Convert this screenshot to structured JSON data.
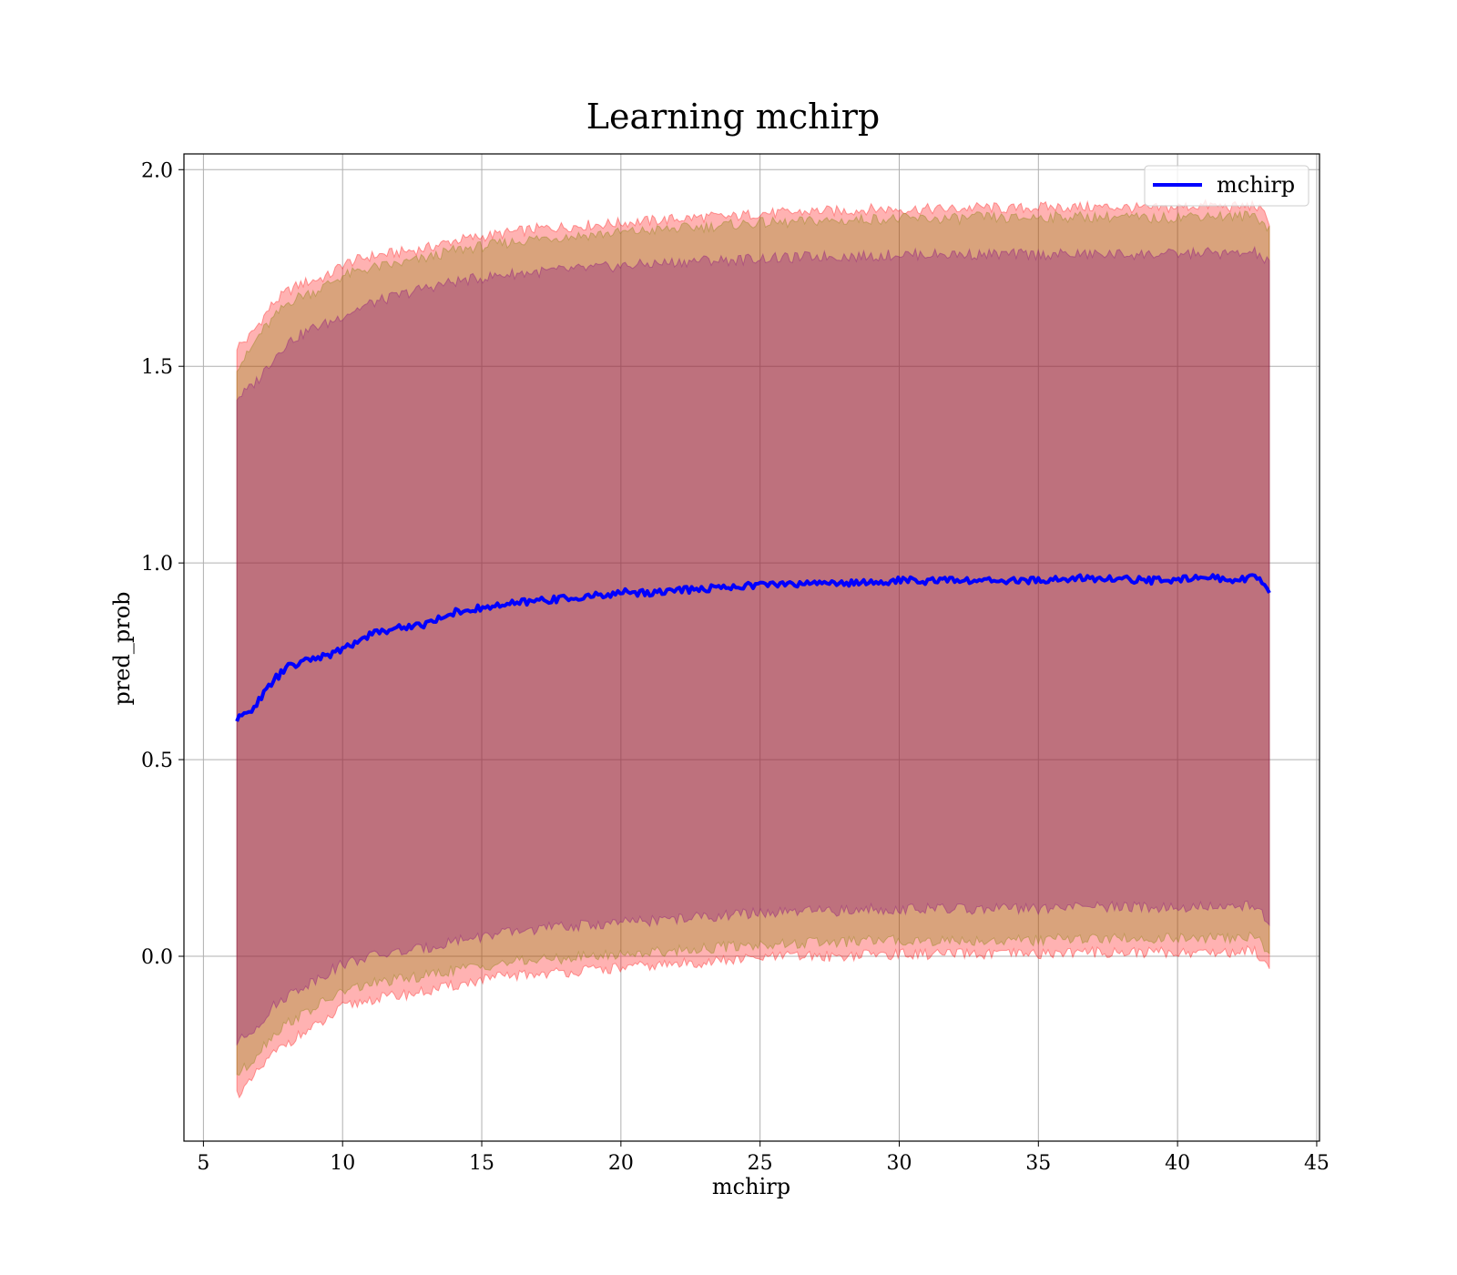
{
  "chart_data": {
    "type": "line",
    "title": "Learning mchirp",
    "xlabel": "mchirp",
    "ylabel": "pred_prob",
    "xlim": [
      4.3,
      45.1
    ],
    "ylim": [
      -0.47,
      2.04
    ],
    "xticks": [
      5,
      10,
      15,
      20,
      25,
      30,
      35,
      40,
      45
    ],
    "xtick_labels": [
      "5",
      "10",
      "15",
      "20",
      "25",
      "30",
      "35",
      "40",
      "45"
    ],
    "yticks": [
      0.0,
      0.5,
      1.0,
      1.5,
      2.0
    ],
    "ytick_labels": [
      "0.0",
      "0.5",
      "1.0",
      "1.5",
      "2.0"
    ],
    "grid": true,
    "legend_position": "top-right",
    "series": [
      {
        "name": "mchirp",
        "color": "#0000ff",
        "x": [
          6.2,
          6.6,
          7.0,
          7.5,
          8.0,
          8.5,
          9.0,
          9.5,
          10.0,
          11.0,
          12.0,
          13.0,
          14.0,
          15.0,
          16.0,
          17.0,
          18.0,
          19.0,
          20.0,
          21.0,
          22.0,
          23.0,
          24.0,
          25.0,
          26.0,
          27.0,
          28.0,
          29.0,
          30.0,
          31.0,
          32.0,
          33.0,
          34.0,
          35.0,
          36.0,
          37.0,
          38.0,
          39.0,
          40.0,
          41.0,
          42.0,
          42.8,
          43.3
        ],
        "y": [
          0.6,
          0.62,
          0.65,
          0.7,
          0.735,
          0.745,
          0.76,
          0.765,
          0.78,
          0.82,
          0.835,
          0.845,
          0.875,
          0.885,
          0.895,
          0.905,
          0.91,
          0.915,
          0.925,
          0.925,
          0.93,
          0.935,
          0.94,
          0.945,
          0.945,
          0.95,
          0.95,
          0.95,
          0.955,
          0.955,
          0.955,
          0.955,
          0.955,
          0.955,
          0.96,
          0.96,
          0.96,
          0.955,
          0.96,
          0.965,
          0.955,
          0.965,
          0.925
        ]
      }
    ],
    "bands": [
      {
        "color": "#ff0000",
        "opacity": 0.3,
        "x": [
          6.2,
          6.6,
          7.0,
          7.5,
          8.0,
          8.5,
          9.0,
          9.5,
          10.0,
          11.0,
          12.0,
          13.0,
          14.0,
          15.0,
          16.0,
          17.0,
          18.0,
          19.0,
          20.0,
          21.0,
          22.0,
          23.0,
          24.0,
          25.0,
          26.0,
          27.0,
          28.0,
          29.0,
          30.0,
          31.0,
          32.0,
          33.0,
          34.0,
          35.0,
          36.0,
          37.0,
          38.0,
          39.0,
          40.0,
          41.0,
          42.0,
          42.8,
          43.3
        ],
        "upper": [
          1.55,
          1.57,
          1.61,
          1.66,
          1.69,
          1.71,
          1.72,
          1.73,
          1.76,
          1.78,
          1.79,
          1.8,
          1.82,
          1.83,
          1.84,
          1.85,
          1.855,
          1.86,
          1.865,
          1.87,
          1.875,
          1.88,
          1.88,
          1.89,
          1.89,
          1.895,
          1.895,
          1.9,
          1.9,
          1.9,
          1.9,
          1.905,
          1.9,
          1.905,
          1.905,
          1.905,
          1.905,
          1.9,
          1.905,
          1.91,
          1.905,
          1.91,
          1.87
        ],
        "lower": [
          -0.35,
          -0.33,
          -0.29,
          -0.25,
          -0.22,
          -0.2,
          -0.18,
          -0.16,
          -0.13,
          -0.11,
          -0.1,
          -0.09,
          -0.075,
          -0.06,
          -0.05,
          -0.045,
          -0.04,
          -0.035,
          -0.03,
          -0.025,
          -0.02,
          -0.015,
          -0.01,
          -0.005,
          0.0,
          0.0,
          0.0,
          0.005,
          0.005,
          0.005,
          0.005,
          0.005,
          0.005,
          0.005,
          0.01,
          0.01,
          0.01,
          0.01,
          0.01,
          0.01,
          0.01,
          0.015,
          -0.03
        ]
      },
      {
        "color": "#808000",
        "opacity": 0.3,
        "x": [
          6.2,
          6.6,
          7.0,
          7.5,
          8.0,
          8.5,
          9.0,
          9.5,
          10.0,
          11.0,
          12.0,
          13.0,
          14.0,
          15.0,
          16.0,
          17.0,
          18.0,
          19.0,
          20.0,
          21.0,
          22.0,
          23.0,
          24.0,
          25.0,
          26.0,
          27.0,
          28.0,
          29.0,
          30.0,
          31.0,
          32.0,
          33.0,
          34.0,
          35.0,
          36.0,
          37.0,
          38.0,
          39.0,
          40.0,
          41.0,
          42.0,
          42.8,
          43.3
        ],
        "upper": [
          1.5,
          1.53,
          1.58,
          1.62,
          1.66,
          1.68,
          1.69,
          1.71,
          1.73,
          1.75,
          1.76,
          1.775,
          1.795,
          1.805,
          1.815,
          1.825,
          1.83,
          1.835,
          1.84,
          1.845,
          1.85,
          1.855,
          1.86,
          1.865,
          1.865,
          1.87,
          1.87,
          1.875,
          1.875,
          1.875,
          1.875,
          1.88,
          1.875,
          1.88,
          1.88,
          1.88,
          1.88,
          1.875,
          1.88,
          1.885,
          1.88,
          1.885,
          1.85
        ],
        "lower": [
          -0.3,
          -0.28,
          -0.24,
          -0.2,
          -0.17,
          -0.15,
          -0.13,
          -0.11,
          -0.09,
          -0.07,
          -0.06,
          -0.05,
          -0.035,
          -0.025,
          -0.015,
          -0.01,
          -0.005,
          0.0,
          0.005,
          0.01,
          0.015,
          0.02,
          0.025,
          0.03,
          0.03,
          0.035,
          0.035,
          0.04,
          0.04,
          0.04,
          0.04,
          0.04,
          0.04,
          0.04,
          0.045,
          0.045,
          0.045,
          0.045,
          0.045,
          0.045,
          0.045,
          0.05,
          0.01
        ]
      },
      {
        "color": "#800080",
        "opacity": 0.3,
        "x": [
          6.2,
          6.6,
          7.0,
          7.5,
          8.0,
          8.5,
          9.0,
          9.5,
          10.0,
          11.0,
          12.0,
          13.0,
          14.0,
          15.0,
          16.0,
          17.0,
          18.0,
          19.0,
          20.0,
          21.0,
          22.0,
          23.0,
          24.0,
          25.0,
          26.0,
          27.0,
          28.0,
          29.0,
          30.0,
          31.0,
          32.0,
          33.0,
          34.0,
          35.0,
          36.0,
          37.0,
          38.0,
          39.0,
          40.0,
          41.0,
          42.0,
          42.8,
          43.3
        ],
        "upper": [
          1.42,
          1.44,
          1.47,
          1.52,
          1.56,
          1.58,
          1.6,
          1.61,
          1.63,
          1.66,
          1.68,
          1.7,
          1.715,
          1.725,
          1.735,
          1.74,
          1.745,
          1.75,
          1.755,
          1.76,
          1.765,
          1.77,
          1.77,
          1.775,
          1.775,
          1.78,
          1.78,
          1.78,
          1.785,
          1.785,
          1.785,
          1.785,
          1.785,
          1.785,
          1.785,
          1.785,
          1.785,
          1.785,
          1.785,
          1.79,
          1.785,
          1.79,
          1.76
        ],
        "lower": [
          -0.22,
          -0.2,
          -0.17,
          -0.13,
          -0.1,
          -0.08,
          -0.06,
          -0.04,
          -0.02,
          0.0,
          0.01,
          0.02,
          0.04,
          0.05,
          0.06,
          0.07,
          0.075,
          0.08,
          0.085,
          0.09,
          0.095,
          0.1,
          0.105,
          0.11,
          0.11,
          0.115,
          0.115,
          0.12,
          0.12,
          0.12,
          0.12,
          0.12,
          0.12,
          0.12,
          0.125,
          0.125,
          0.125,
          0.125,
          0.125,
          0.125,
          0.125,
          0.13,
          0.09
        ]
      }
    ]
  }
}
